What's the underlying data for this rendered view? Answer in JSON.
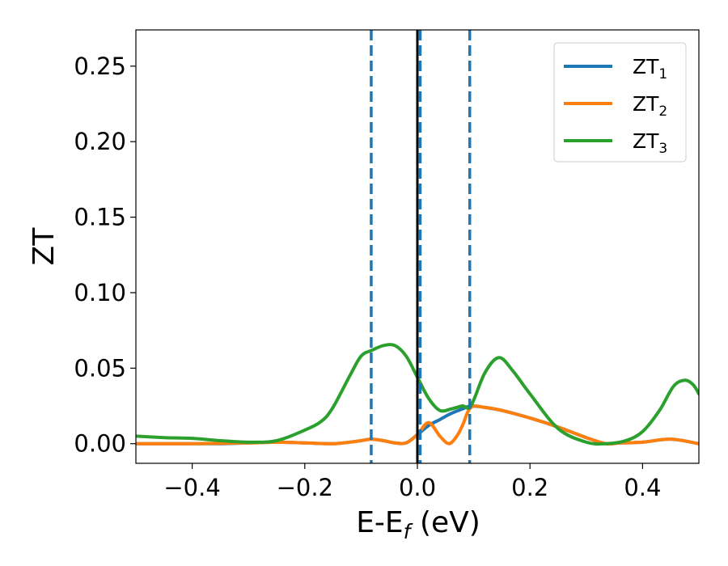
{
  "chart_data": {
    "type": "line",
    "xlabel": "E-E",
    "xlabel_subscript": "f",
    "xlabel_unit": "(eV)",
    "ylabel": "ZT",
    "xlim": [
      -0.5,
      0.5
    ],
    "ylim": [
      -0.013,
      0.274
    ],
    "xticks": [
      -0.4,
      -0.2,
      0.0,
      0.2,
      0.4
    ],
    "xtick_labels": [
      "−0.4",
      "−0.2",
      "0.0",
      "0.2",
      "0.4"
    ],
    "yticks": [
      0.0,
      0.05,
      0.1,
      0.15,
      0.2,
      0.25
    ],
    "ytick_labels": [
      "0.00",
      "0.05",
      "0.10",
      "0.15",
      "0.20",
      "0.25"
    ],
    "grid": false,
    "legend_position": "top-right",
    "series": [
      {
        "name": "ZT",
        "subscript": "1",
        "color": "#1f77b4",
        "x": [
          -0.5,
          -0.45,
          -0.4,
          -0.35,
          -0.3,
          -0.25,
          -0.2,
          -0.15,
          -0.12,
          -0.1,
          -0.082,
          -0.06,
          -0.04,
          -0.02,
          0.0,
          0.02,
          0.04,
          0.06,
          0.08,
          0.095,
          0.12,
          0.15,
          0.2,
          0.25,
          0.3,
          0.335,
          0.36,
          0.4,
          0.45,
          0.5
        ],
        "y": [
          0.0,
          0.0,
          0.0,
          0.0,
          0.0005,
          0.001,
          0.0005,
          0.0,
          0.001,
          0.002,
          0.003,
          0.002,
          0.0005,
          0.0005,
          0.006,
          0.012,
          0.016,
          0.02,
          0.023,
          0.025,
          0.024,
          0.022,
          0.017,
          0.011,
          0.004,
          0.0,
          0.0005,
          0.001,
          0.003,
          0.0
        ]
      },
      {
        "name": "ZT",
        "subscript": "2",
        "color": "#ff7f0e",
        "x": [
          -0.5,
          -0.4,
          -0.3,
          -0.25,
          -0.2,
          -0.15,
          -0.12,
          -0.1,
          -0.082,
          -0.06,
          -0.04,
          -0.02,
          0.0,
          0.02,
          0.04,
          0.056,
          0.07,
          0.08,
          0.095,
          0.12,
          0.15,
          0.2,
          0.25,
          0.3,
          0.335,
          0.36,
          0.4,
          0.45,
          0.5
        ],
        "y": [
          0.0,
          0.0,
          0.0005,
          0.001,
          0.0005,
          0.0,
          0.001,
          0.002,
          0.003,
          0.002,
          0.0005,
          0.0005,
          0.006,
          0.014,
          0.005,
          0.0,
          0.005,
          0.012,
          0.024,
          0.024,
          0.022,
          0.017,
          0.011,
          0.004,
          0.0,
          0.0005,
          0.001,
          0.003,
          0.0
        ]
      },
      {
        "name": "ZT",
        "subscript": "3",
        "color": "#2ca02c",
        "x": [
          -0.5,
          -0.45,
          -0.4,
          -0.35,
          -0.3,
          -0.25,
          -0.2,
          -0.17,
          -0.15,
          -0.12,
          -0.1,
          -0.08,
          -0.06,
          -0.04,
          -0.02,
          0.0,
          0.02,
          0.04,
          0.06,
          0.08,
          0.095,
          0.12,
          0.145,
          0.17,
          0.2,
          0.25,
          0.3,
          0.335,
          0.37,
          0.4,
          0.43,
          0.455,
          0.475,
          0.49,
          0.5
        ],
        "y": [
          0.005,
          0.004,
          0.0035,
          0.002,
          0.001,
          0.002,
          0.009,
          0.015,
          0.024,
          0.045,
          0.058,
          0.062,
          0.065,
          0.065,
          0.058,
          0.044,
          0.03,
          0.022,
          0.023,
          0.025,
          0.025,
          0.047,
          0.057,
          0.048,
          0.033,
          0.01,
          0.001,
          0.0,
          0.002,
          0.008,
          0.022,
          0.038,
          0.042,
          0.039,
          0.033
        ]
      }
    ],
    "vlines": [
      {
        "x": -0.082,
        "color": "#1f77b4",
        "style": "dashed"
      },
      {
        "x": 0.0,
        "color": "#000000",
        "style": "solid"
      },
      {
        "x": 0.005,
        "color": "#1f77b4",
        "style": "dashed"
      },
      {
        "x": 0.093,
        "color": "#1f77b4",
        "style": "dashed"
      }
    ]
  }
}
